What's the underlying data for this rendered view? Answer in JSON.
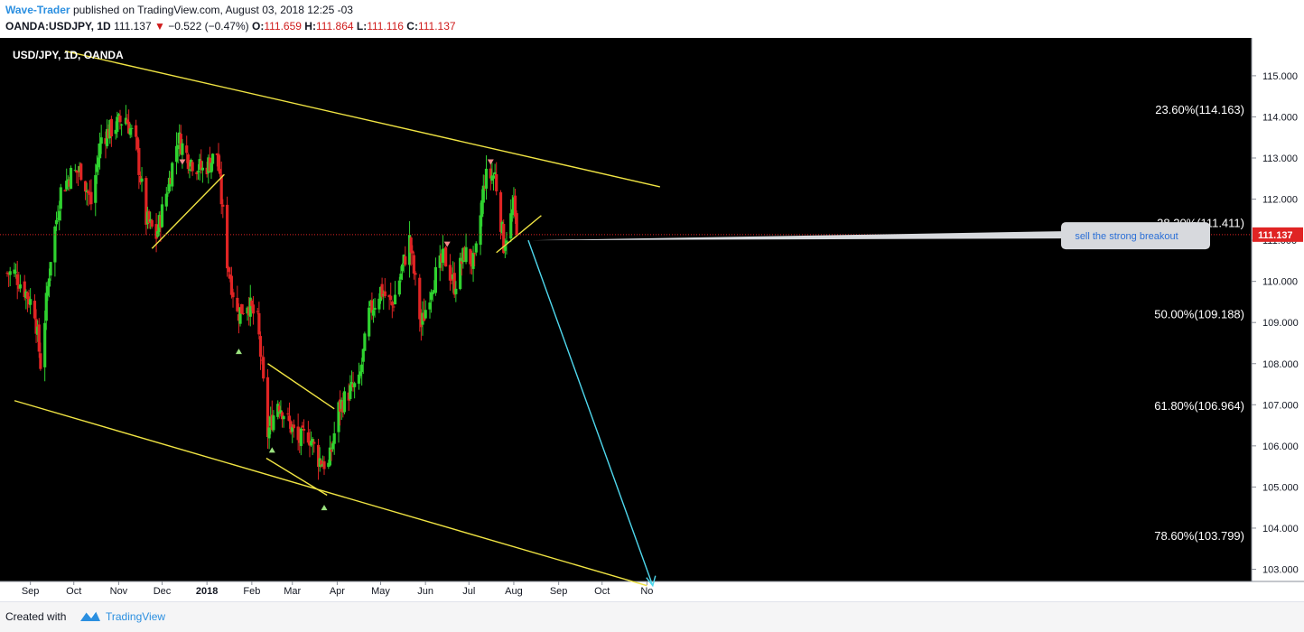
{
  "header": {
    "author": "Wave-Trader",
    "published_text": "published on TradingView.com, August 03, 2018 12:25 -03",
    "symbol": "OANDA:USDJPY, 1D",
    "last": "111.137",
    "change": "−0.522 (−0.47%)",
    "o_label": "O:",
    "o_value": "111.659",
    "h_label": "H:",
    "h_value": "111.864",
    "l_label": "L:",
    "l_value": "111.116",
    "c_label": "C:",
    "c_value": "111.137"
  },
  "footer": {
    "created_with": "Created with",
    "brand": "TradingView"
  },
  "chart_data": {
    "type": "candlestick",
    "title": "USD/JPY, 1D, OANDA",
    "ylim": [
      102.6,
      115.5
    ],
    "y_ticks": [
      "103.000",
      "104.000",
      "105.000",
      "106.000",
      "107.000",
      "108.000",
      "109.000",
      "110.000",
      "111.000",
      "112.000",
      "113.000",
      "114.000",
      "115.000"
    ],
    "x_ticks": [
      "Sep",
      "Oct",
      "Nov",
      "Dec",
      "2018",
      "Feb",
      "Mar",
      "Apr",
      "May",
      "Jun",
      "Jul",
      "Aug",
      "Sep",
      "Oct",
      "No"
    ],
    "last_price": 111.137,
    "last_price_label": "111.137",
    "fib_levels": [
      {
        "label": "23.60%(114.163)",
        "value": 114.163
      },
      {
        "label": "38.20%(111.411)",
        "value": 111.411
      },
      {
        "label": "50.00%(109.188)",
        "value": 109.188
      },
      {
        "label": "61.80%(106.964)",
        "value": 106.964
      },
      {
        "label": "78.60%(103.799)",
        "value": 103.799
      }
    ],
    "close_path": [
      [
        "2017-08-21",
        110.2
      ],
      [
        "2017-08-28",
        109.8
      ],
      [
        "2017-09-04",
        109.3
      ],
      [
        "2017-09-08",
        108.0
      ],
      [
        "2017-09-15",
        110.6
      ],
      [
        "2017-09-22",
        112.2
      ],
      [
        "2017-09-29",
        112.6
      ],
      [
        "2017-10-06",
        112.7
      ],
      [
        "2017-10-13",
        111.9
      ],
      [
        "2017-10-20",
        113.5
      ],
      [
        "2017-10-27",
        113.7
      ],
      [
        "2017-11-06",
        114.0
      ],
      [
        "2017-11-13",
        113.3
      ],
      [
        "2017-11-20",
        111.5
      ],
      [
        "2017-11-27",
        111.1
      ],
      [
        "2017-12-05",
        112.3
      ],
      [
        "2017-12-12",
        113.5
      ],
      [
        "2017-12-19",
        113.0
      ],
      [
        "2017-12-29",
        112.7
      ],
      [
        "2018-01-08",
        113.1
      ],
      [
        "2018-01-15",
        110.5
      ],
      [
        "2018-01-22",
        109.2
      ],
      [
        "2018-01-29",
        109.5
      ],
      [
        "2018-02-05",
        109.0
      ],
      [
        "2018-02-12",
        106.3
      ],
      [
        "2018-02-19",
        107.1
      ],
      [
        "2018-02-26",
        106.6
      ],
      [
        "2018-03-05",
        106.1
      ],
      [
        "2018-03-12",
        106.3
      ],
      [
        "2018-03-19",
        105.7
      ],
      [
        "2018-03-26",
        105.5
      ],
      [
        "2018-04-02",
        106.9
      ],
      [
        "2018-04-09",
        107.3
      ],
      [
        "2018-04-16",
        107.5
      ],
      [
        "2018-04-23",
        109.2
      ],
      [
        "2018-05-01",
        109.8
      ],
      [
        "2018-05-09",
        109.4
      ],
      [
        "2018-05-21",
        111.0
      ],
      [
        "2018-05-29",
        108.9
      ],
      [
        "2018-06-05",
        109.9
      ],
      [
        "2018-06-14",
        110.6
      ],
      [
        "2018-06-21",
        109.9
      ],
      [
        "2018-06-28",
        110.7
      ],
      [
        "2018-07-05",
        110.4
      ],
      [
        "2018-07-12",
        112.5
      ],
      [
        "2018-07-19",
        112.6
      ],
      [
        "2018-07-25",
        110.9
      ],
      [
        "2018-08-01",
        111.8
      ],
      [
        "2018-08-03",
        111.137
      ]
    ],
    "trendlines": [
      {
        "from": [
          "2017-09-25",
          115.6
        ],
        "to": [
          "2018-11-10",
          112.3
        ],
        "color": "#f0e443"
      },
      {
        "from": [
          "2017-08-21",
          107.1
        ],
        "to": [
          "2018-11-01",
          102.6
        ],
        "color": "#f0e443"
      },
      {
        "from": [
          "2017-11-24",
          110.8
        ],
        "to": [
          "2018-01-13",
          112.6
        ],
        "color": "#f0e443"
      },
      {
        "from": [
          "2018-02-12",
          108.0
        ],
        "to": [
          "2018-03-30",
          106.9
        ],
        "color": "#f0e443"
      },
      {
        "from": [
          "2018-02-11",
          105.7
        ],
        "to": [
          "2018-03-25",
          104.8
        ],
        "color": "#f0e443"
      },
      {
        "from": [
          "2018-07-20",
          110.7
        ],
        "to": [
          "2018-08-20",
          111.6
        ],
        "color": "#f0e443"
      },
      {
        "from": [
          "2018-08-11",
          111.0
        ],
        "to": [
          "2018-11-05",
          102.6
        ],
        "color": "#4fd8ee"
      }
    ],
    "markers": [
      {
        "type": "up",
        "date": "2018-01-23",
        "value": 108.3
      },
      {
        "type": "up",
        "date": "2018-02-15",
        "value": 105.9
      },
      {
        "type": "up",
        "date": "2018-03-23",
        "value": 104.5
      },
      {
        "type": "down",
        "date": "2017-12-15",
        "value": 112.9
      },
      {
        "type": "down",
        "date": "2018-06-16",
        "value": 110.9
      },
      {
        "type": "down",
        "date": "2018-07-16",
        "value": 112.9
      }
    ],
    "callout": {
      "text": "sell the strong breakout",
      "date": "2018-08-11",
      "value": 111.0
    },
    "colors": {
      "up": "#2fd12f",
      "down": "#e02424",
      "background": "#000000",
      "trendline": "#f0e443",
      "projection": "#4fd8ee",
      "last_price": "#e02424"
    }
  }
}
